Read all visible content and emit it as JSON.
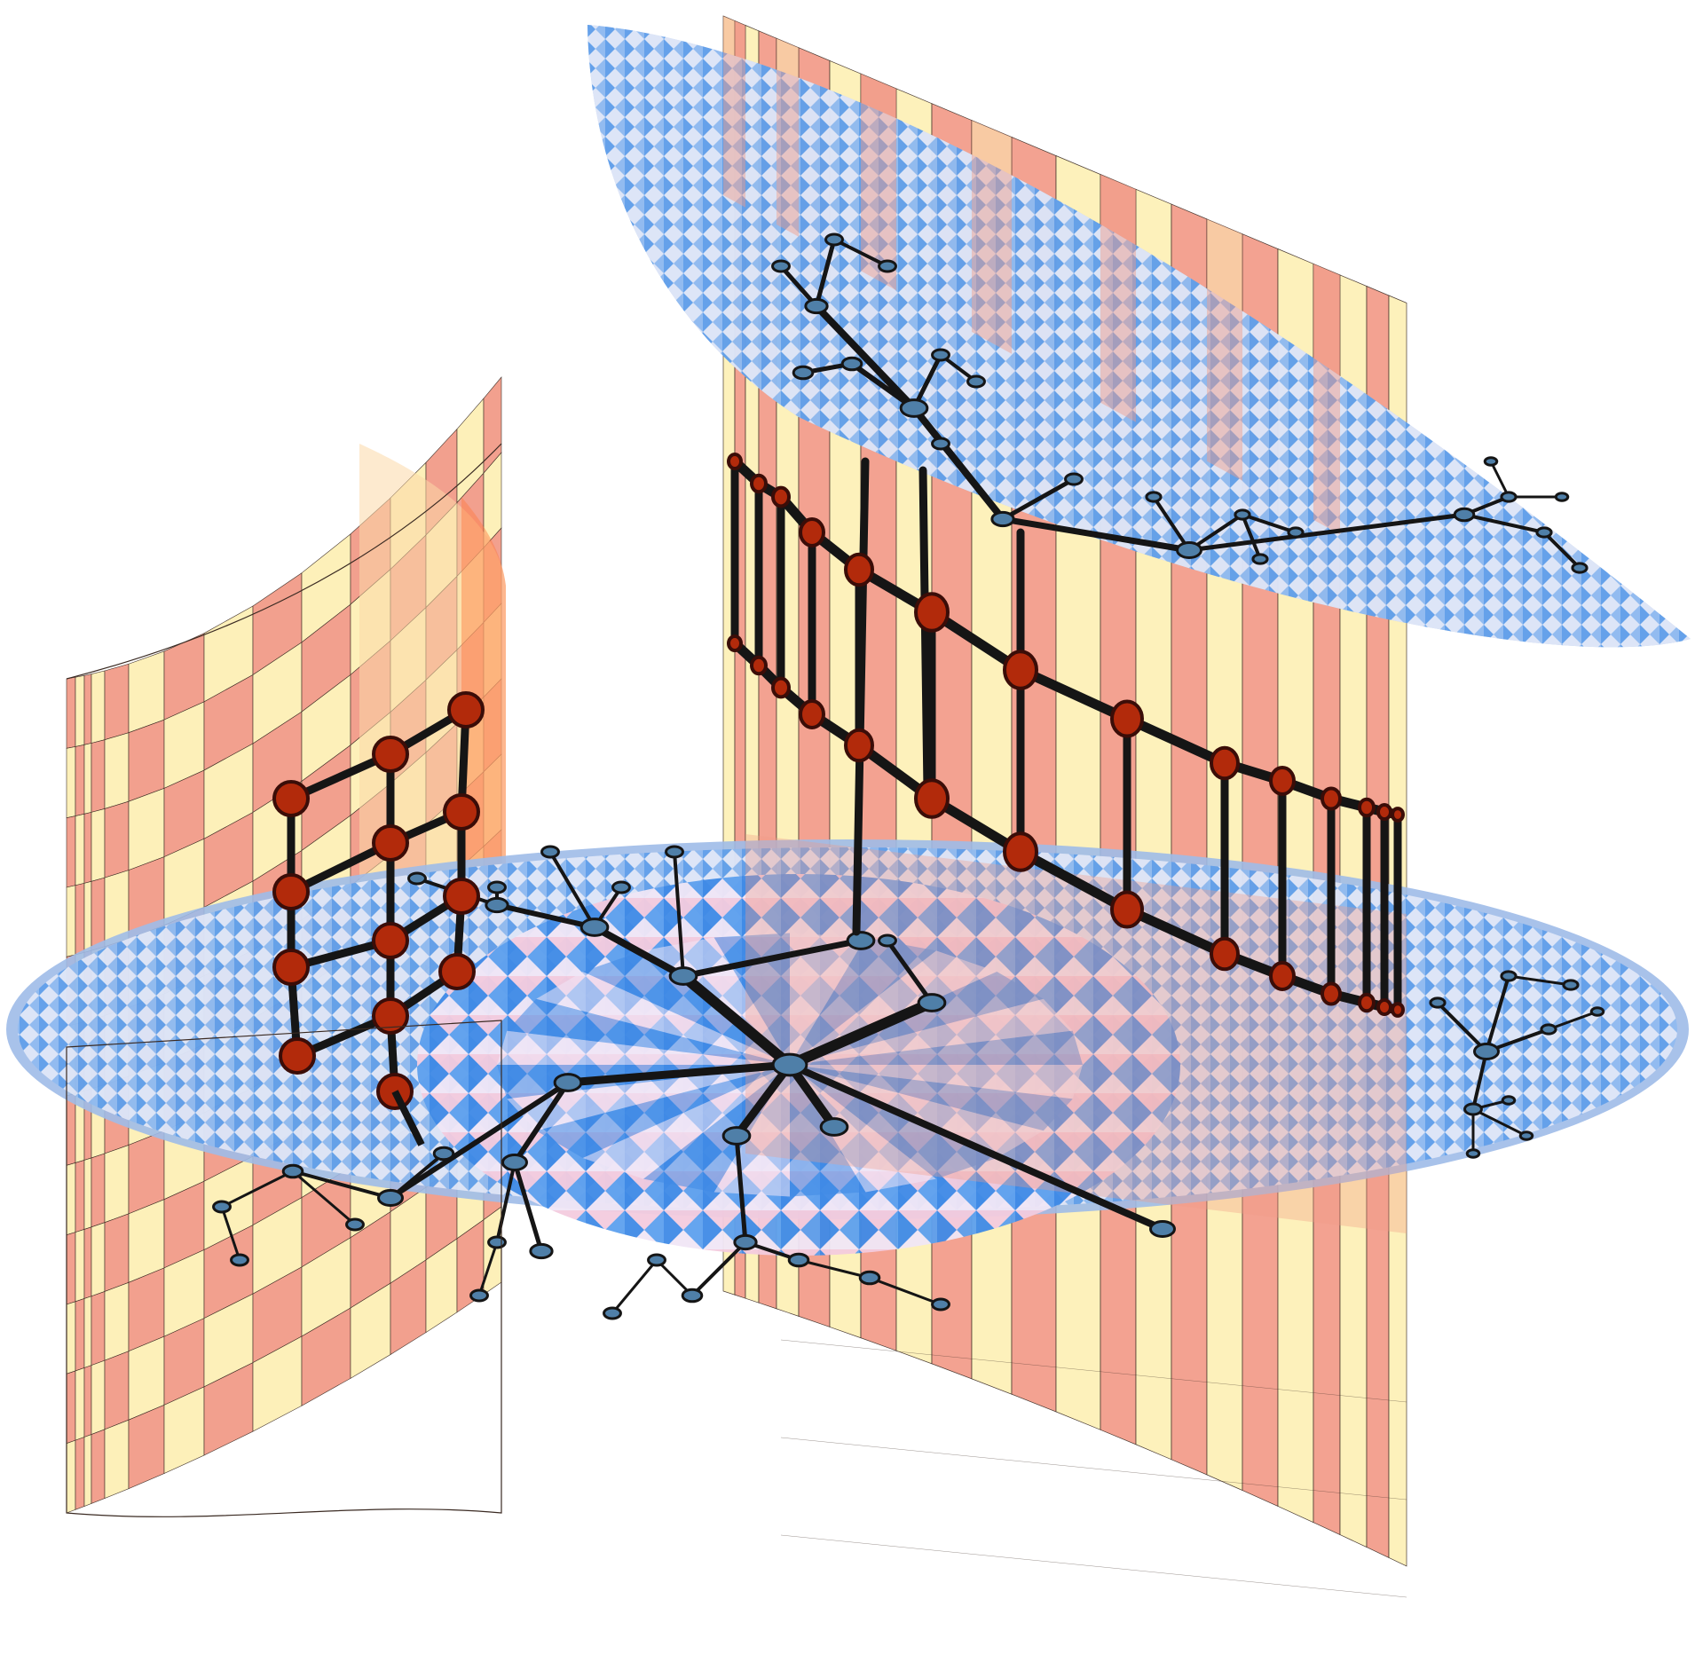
{
  "figure": {
    "caption": "",
    "palette": {
      "wall_salmon": "#f29b88",
      "wall_cream": "#fdf0b6",
      "wall_edge": "#3a2a22",
      "disc_blue": "#3f8ae6",
      "disc_light": "#f0e6f6",
      "disc_pink": "#f4c4d8",
      "disc_rim": "#9fbbe8",
      "tree_edge": "#151515",
      "tree_node": "#4f7fa8",
      "ladder_node": "#b22a0b",
      "ladder_node_stroke": "#3b0d08"
    },
    "components": [
      {
        "name": "curved-wall",
        "shape": "cylindrical sheet with checkerboard bands"
      },
      {
        "name": "flat-wall",
        "shape": "vertical sheet with vertical stripes"
      },
      {
        "name": "lower-disc",
        "shape": "hyperbolic tiling disc with tree graph"
      },
      {
        "name": "upper-disc",
        "shape": "tilted hyperbolic tiling disc with tree graph"
      },
      {
        "name": "small-ladder",
        "shape": "ladder graph on curved wall"
      },
      {
        "name": "large-ladder",
        "shape": "ladder graph on flat wall"
      }
    ]
  }
}
